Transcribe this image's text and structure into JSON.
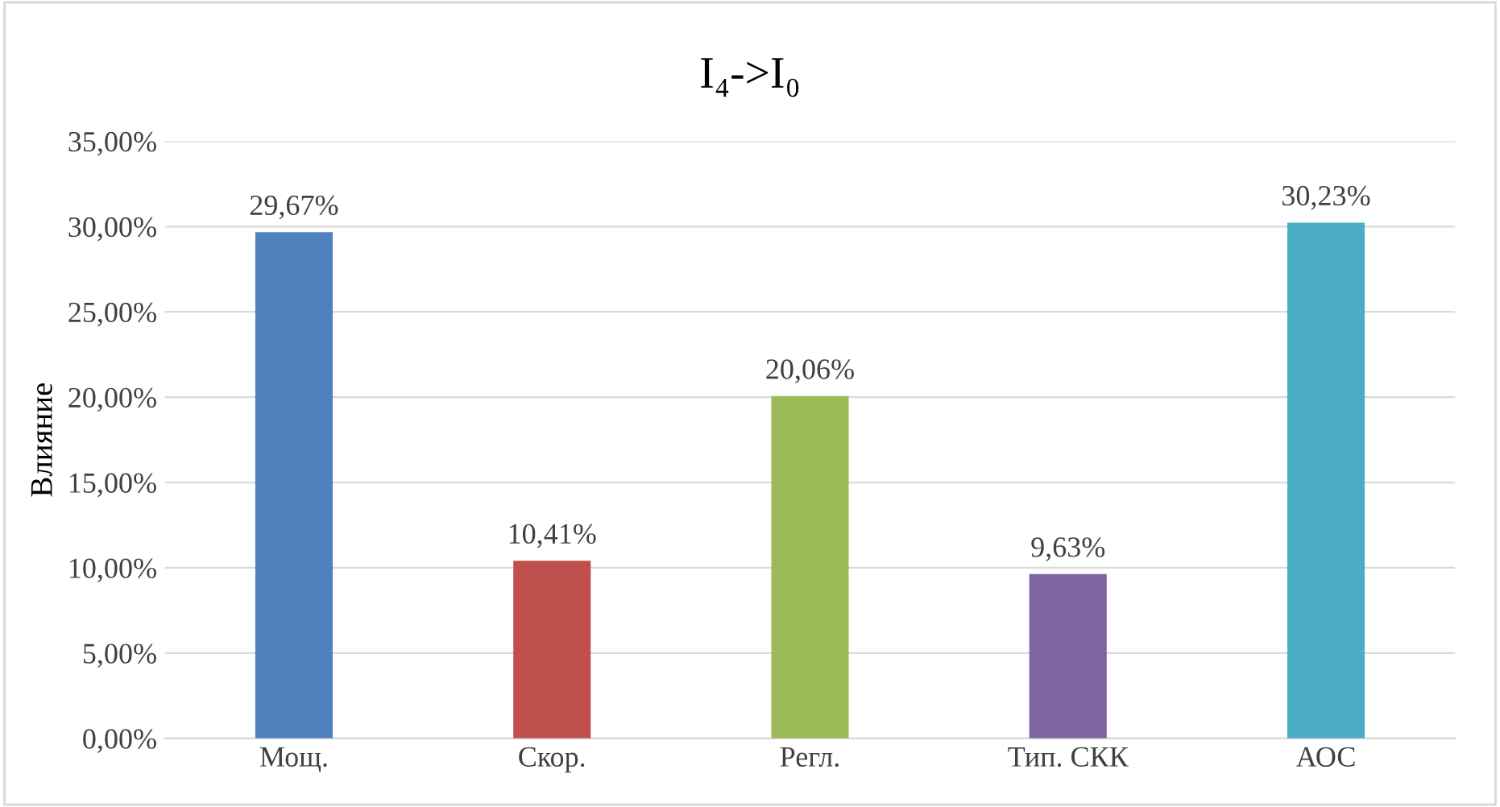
{
  "chart_data": {
    "type": "bar",
    "title": "I₄->I₀",
    "ylabel": "Влияние",
    "categories": [
      "Мощ.",
      "Скор.",
      "Регл.",
      "Тип. СКК",
      "АОС"
    ],
    "values": [
      29.67,
      10.41,
      20.06,
      9.63,
      30.23
    ],
    "colors": [
      "#4f81bd",
      "#c0504d",
      "#9bbb59",
      "#8064a2",
      "#4bacc6"
    ],
    "value_labels": [
      "29,67%",
      "10,41%",
      "20,06%",
      "9,63%",
      "30,23%"
    ],
    "ylim": [
      0,
      35
    ],
    "yticks": [
      {
        "value": 0,
        "label": "0,00%"
      },
      {
        "value": 5,
        "label": "5,00%"
      },
      {
        "value": 10,
        "label": "10,00%"
      },
      {
        "value": 15,
        "label": "15,00%"
      },
      {
        "value": 20,
        "label": "20,00%"
      },
      {
        "value": 25,
        "label": "25,00%"
      },
      {
        "value": 30,
        "label": "30,00%"
      },
      {
        "value": 35,
        "label": "35,00%"
      }
    ],
    "grid": "y",
    "legend": false
  }
}
